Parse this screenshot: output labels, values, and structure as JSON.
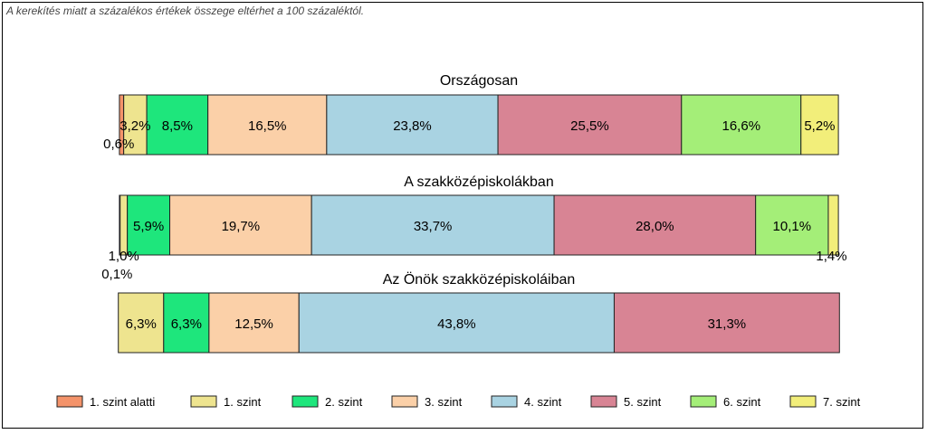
{
  "note": "A kerekítés miatt a  százalékos értékek összege eltérhet a 100 százaléktól.",
  "chart_data": {
    "type": "bar",
    "orientation": "horizontal",
    "stacked": "percent",
    "legend_position": "bottom",
    "grid": false,
    "levels": [
      {
        "name": "1. szint alatti",
        "color": "#F4936A"
      },
      {
        "name": "1. szint",
        "color": "#EEE48F"
      },
      {
        "name": "2. szint",
        "color": "#1EE67C"
      },
      {
        "name": "3. szint",
        "color": "#FBD0A8"
      },
      {
        "name": "4. szint",
        "color": "#A9D3E2"
      },
      {
        "name": "5. szint",
        "color": "#D88494"
      },
      {
        "name": "6. szint",
        "color": "#A4EE78"
      },
      {
        "name": "7. szint",
        "color": "#F2EE7A"
      }
    ],
    "groups": [
      {
        "title": "Országosan",
        "values": [
          0.6,
          3.2,
          8.5,
          16.5,
          23.8,
          25.5,
          16.6,
          5.2
        ],
        "labels": [
          "0,6%",
          "3,2%",
          "8,5%",
          "16,5%",
          "23,8%",
          "25,5%",
          "16,6%",
          "5,2%"
        ]
      },
      {
        "title": "A szakközépiskolákban",
        "values": [
          0.1,
          1.0,
          5.9,
          19.7,
          33.7,
          28.0,
          10.1,
          1.4
        ],
        "labels": [
          "0,1%",
          "1,0%",
          "5,9%",
          "19,7%",
          "33,7%",
          "28,0%",
          "10,1%",
          "1,4%"
        ]
      },
      {
        "title": "Az Önök szakközépiskoláiban",
        "values": [
          0,
          6.3,
          6.3,
          12.5,
          43.8,
          31.3,
          0,
          0
        ],
        "labels": [
          "",
          "6,3%",
          "6,3%",
          "12,5%",
          "43,8%",
          "31,3%",
          "",
          ""
        ]
      }
    ]
  }
}
